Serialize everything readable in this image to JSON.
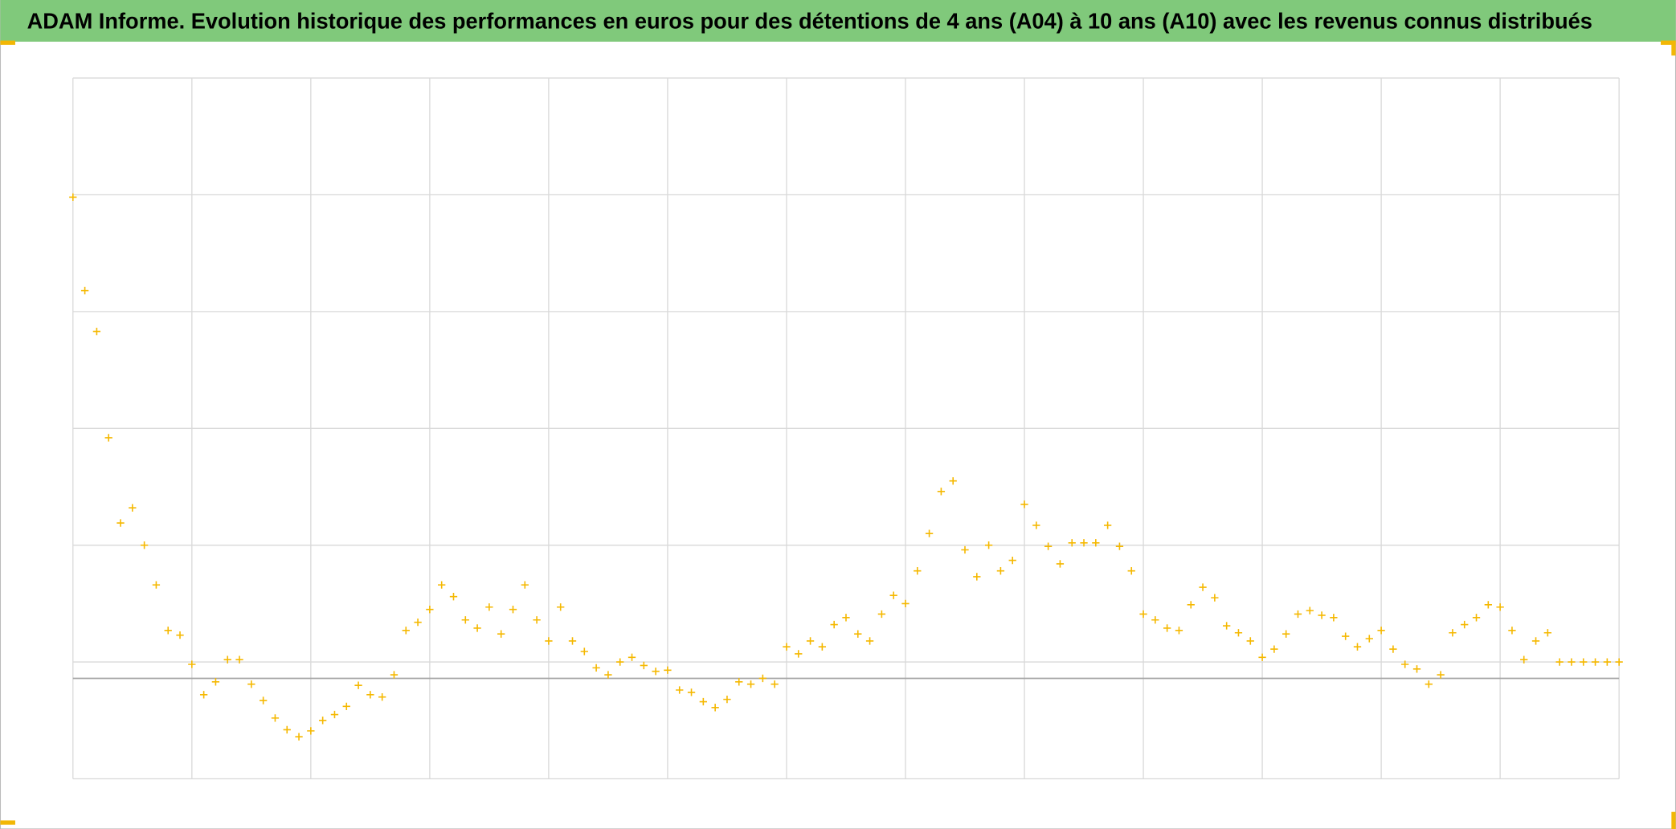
{
  "chart_data": {
    "type": "scatter",
    "title": "ADAM Informe. Evolution historique des performances en euros pour des détentions de 4 ans (A04) à 10 ans (A10) avec les revenus connus distribués",
    "xlim": [
      0,
      13
    ],
    "xticks": [
      0,
      1,
      2,
      3,
      4,
      5,
      6,
      7,
      8,
      9,
      10,
      11,
      12,
      13
    ],
    "ylim": [
      -86,
      514
    ],
    "yticks": [
      -86,
      14,
      114,
      214,
      314,
      414,
      514
    ],
    "grid": true,
    "series": [
      {
        "color": "#f5b800",
        "x": [
          0,
          0.1,
          0.2,
          0.3,
          0.4,
          0.5,
          0.6,
          0.7,
          0.8,
          0.9,
          1,
          1.1,
          1.2,
          1.3,
          1.4,
          1.5,
          1.6,
          1.7,
          1.8,
          1.9,
          2,
          2.1,
          2.2,
          2.3,
          2.4,
          2.5,
          2.6,
          2.7,
          2.8,
          2.9,
          3,
          3.1,
          3.2,
          3.3,
          3.4,
          3.5,
          3.6,
          3.7,
          3.8,
          3.9,
          4,
          4.1,
          4.2,
          4.3,
          4.4,
          4.5,
          4.6,
          4.7,
          4.8,
          4.9,
          5,
          5.1,
          5.2,
          5.3,
          5.4,
          5.5,
          5.6,
          5.7,
          5.8,
          5.9,
          6,
          6.1,
          6.2,
          6.3,
          6.4,
          6.5,
          6.6,
          6.7,
          6.8,
          6.9,
          7,
          7.1,
          7.2,
          7.3,
          7.4,
          7.5,
          7.6,
          7.7,
          7.8,
          7.9,
          8,
          8.1,
          8.2,
          8.3,
          8.4,
          8.5,
          8.6,
          8.7,
          8.8,
          8.9,
          9,
          9.1,
          9.2,
          9.3,
          9.4,
          9.5,
          9.6,
          9.7,
          9.8,
          9.9,
          10,
          10.1,
          10.2,
          10.3,
          10.4,
          10.5,
          10.6,
          10.7,
          10.8,
          10.9,
          11,
          11.1,
          11.2,
          11.3,
          11.4,
          11.5,
          11.6,
          11.7,
          11.8,
          11.9,
          12,
          12.1,
          12.2,
          12.3,
          12.4,
          12.5,
          12.6,
          12.7,
          12.8,
          12.9,
          13
        ],
        "values": [
          412,
          332,
          297,
          206,
          133,
          146,
          114,
          80,
          41,
          37,
          12,
          -14,
          -3,
          16,
          16,
          -5,
          -19,
          -34,
          -44,
          -50,
          -45,
          -36,
          -31,
          -24,
          -6,
          -14,
          -16,
          3,
          41,
          48,
          59,
          80,
          70,
          50,
          43,
          61,
          38,
          59,
          80,
          50,
          32,
          61,
          32,
          23,
          9,
          3,
          14,
          18,
          11,
          6,
          7,
          -10,
          -12,
          -20,
          -25,
          -18,
          -3,
          -5,
          0,
          -5,
          27,
          21,
          32,
          27,
          46,
          52,
          38,
          32,
          55,
          71,
          64,
          92,
          124,
          160,
          169,
          110,
          87,
          114,
          92,
          101,
          149,
          131,
          113,
          98,
          116,
          116,
          116,
          131,
          113,
          92,
          55,
          50,
          43,
          41,
          63,
          78,
          69,
          45,
          39,
          32,
          18,
          25,
          38,
          55,
          58,
          54,
          52,
          36,
          27,
          34,
          41,
          25,
          12,
          8,
          -5,
          3,
          39,
          46,
          52,
          63,
          61,
          41,
          16,
          32,
          39,
          14,
          14,
          14,
          14,
          14,
          14
        ]
      }
    ]
  }
}
